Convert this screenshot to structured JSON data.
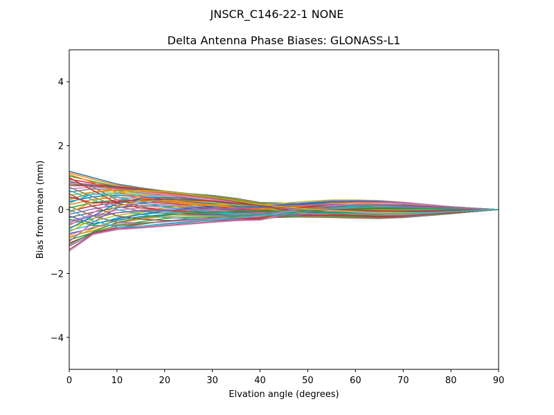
{
  "figure": {
    "suptitle": "JNSCR_C146-22-1 NONE"
  },
  "chart_data": {
    "type": "line",
    "title": "Delta Antenna Phase Biases: GLONASS-L1",
    "xlabel": "Elvation angle (degrees)",
    "ylabel": "Bias from mean (mm)",
    "xlim": [
      0,
      90
    ],
    "ylim": [
      -5,
      5
    ],
    "xticks": [
      0,
      10,
      20,
      30,
      40,
      50,
      60,
      70,
      80,
      90
    ],
    "yticks": [
      -4,
      -2,
      0,
      2,
      4
    ],
    "x": [
      0,
      5,
      10,
      15,
      20,
      25,
      30,
      35,
      40,
      45,
      50,
      55,
      60,
      65,
      70,
      75,
      80,
      85,
      90
    ],
    "grid": false,
    "legend": "none",
    "colors": [
      "#1f77b4",
      "#ff7f0e",
      "#2ca02c",
      "#d62728",
      "#9467bd",
      "#8c564b",
      "#e377c2",
      "#7f7f7f",
      "#bcbd22",
      "#17becf"
    ],
    "series": [
      {
        "values": [
          1.2,
          1.0,
          0.8,
          0.68,
          0.58,
          0.5,
          0.44,
          0.35,
          0.22,
          0.2,
          0.18,
          0.17,
          0.15,
          0.12,
          0.1,
          0.08,
          0.05,
          0.02,
          0.0
        ]
      },
      {
        "values": [
          1.15,
          0.95,
          0.76,
          0.66,
          0.57,
          0.49,
          0.42,
          0.33,
          0.2,
          0.17,
          0.15,
          0.14,
          0.12,
          0.1,
          0.08,
          0.06,
          0.04,
          0.02,
          0.0
        ]
      },
      {
        "values": [
          1.05,
          0.88,
          0.72,
          0.64,
          0.56,
          0.48,
          0.4,
          0.3,
          0.18,
          0.14,
          0.12,
          0.11,
          0.1,
          0.08,
          0.07,
          0.05,
          0.03,
          0.01,
          0.0
        ]
      },
      {
        "values": [
          0.95,
          0.82,
          0.7,
          0.62,
          0.54,
          0.46,
          0.38,
          0.28,
          0.16,
          0.12,
          0.1,
          0.09,
          0.08,
          0.07,
          0.06,
          0.05,
          0.03,
          0.01,
          0.0
        ]
      },
      {
        "values": [
          0.85,
          0.78,
          0.68,
          0.6,
          0.52,
          0.44,
          0.36,
          0.26,
          0.15,
          0.1,
          0.08,
          0.07,
          0.06,
          0.06,
          0.05,
          0.04,
          0.02,
          0.01,
          0.0
        ]
      },
      {
        "values": [
          0.75,
          0.74,
          0.66,
          0.58,
          0.5,
          0.42,
          0.34,
          0.24,
          0.14,
          0.08,
          0.06,
          0.05,
          0.04,
          0.04,
          0.04,
          0.03,
          0.02,
          0.01,
          0.0
        ]
      },
      {
        "values": [
          0.65,
          0.7,
          0.64,
          0.56,
          0.48,
          0.4,
          0.32,
          0.22,
          0.12,
          0.06,
          0.04,
          0.03,
          0.02,
          0.02,
          0.02,
          0.02,
          0.01,
          0.0,
          0.0
        ]
      },
      {
        "values": [
          0.55,
          0.65,
          0.6,
          0.52,
          0.44,
          0.36,
          0.28,
          0.2,
          0.1,
          0.05,
          0.02,
          0.01,
          0.0,
          0.0,
          0.0,
          0.0,
          0.0,
          0.0,
          0.0
        ]
      },
      {
        "values": [
          0.45,
          0.55,
          0.55,
          0.48,
          0.4,
          0.32,
          0.25,
          0.18,
          0.08,
          0.03,
          0.0,
          -0.01,
          -0.02,
          -0.02,
          -0.02,
          -0.01,
          -0.01,
          0.0,
          0.0
        ]
      },
      {
        "values": [
          0.35,
          0.48,
          0.5,
          0.44,
          0.36,
          0.28,
          0.22,
          0.15,
          0.06,
          0.01,
          -0.02,
          -0.03,
          -0.04,
          -0.04,
          -0.03,
          -0.02,
          -0.01,
          0.0,
          0.0
        ]
      },
      {
        "values": [
          0.25,
          0.4,
          0.45,
          0.4,
          0.32,
          0.25,
          0.18,
          0.12,
          0.04,
          -0.01,
          -0.04,
          -0.05,
          -0.06,
          -0.06,
          -0.05,
          -0.04,
          -0.02,
          -0.01,
          0.0
        ]
      },
      {
        "values": [
          0.15,
          0.32,
          0.38,
          0.35,
          0.28,
          0.22,
          0.15,
          0.09,
          0.02,
          -0.03,
          -0.06,
          -0.07,
          -0.08,
          -0.08,
          -0.07,
          -0.05,
          -0.03,
          -0.01,
          0.0
        ]
      },
      {
        "values": [
          0.05,
          0.22,
          0.3,
          0.3,
          0.24,
          0.18,
          0.12,
          0.06,
          0.0,
          -0.05,
          -0.08,
          -0.09,
          -0.1,
          -0.1,
          -0.09,
          -0.06,
          -0.04,
          -0.02,
          0.0
        ]
      },
      {
        "values": [
          -0.05,
          0.12,
          0.22,
          0.24,
          0.2,
          0.14,
          0.09,
          0.03,
          -0.02,
          -0.07,
          -0.1,
          -0.11,
          -0.12,
          -0.12,
          -0.1,
          -0.08,
          -0.05,
          -0.02,
          0.0
        ]
      },
      {
        "values": [
          -0.15,
          0.02,
          0.14,
          0.18,
          0.15,
          0.1,
          0.05,
          0.0,
          -0.05,
          -0.09,
          -0.12,
          -0.13,
          -0.14,
          -0.14,
          -0.12,
          -0.09,
          -0.06,
          -0.03,
          0.0
        ]
      },
      {
        "values": [
          -0.25,
          -0.08,
          0.06,
          0.12,
          0.1,
          0.06,
          0.02,
          -0.03,
          -0.07,
          -0.11,
          -0.14,
          -0.15,
          -0.16,
          -0.16,
          -0.14,
          -0.11,
          -0.07,
          -0.03,
          0.0
        ]
      },
      {
        "values": [
          -0.35,
          -0.18,
          -0.02,
          0.05,
          0.05,
          0.02,
          -0.02,
          -0.06,
          -0.1,
          -0.13,
          -0.16,
          -0.17,
          -0.18,
          -0.18,
          -0.16,
          -0.12,
          -0.08,
          -0.04,
          0.0
        ]
      },
      {
        "values": [
          -0.45,
          -0.28,
          -0.1,
          -0.02,
          0.0,
          -0.02,
          -0.05,
          -0.09,
          -0.12,
          -0.15,
          -0.17,
          -0.19,
          -0.2,
          -0.2,
          -0.18,
          -0.14,
          -0.09,
          -0.04,
          0.0
        ]
      },
      {
        "values": [
          -0.55,
          -0.38,
          -0.18,
          -0.08,
          -0.05,
          -0.06,
          -0.09,
          -0.12,
          -0.15,
          -0.17,
          -0.19,
          -0.21,
          -0.22,
          -0.22,
          -0.19,
          -0.15,
          -0.1,
          -0.05,
          0.0
        ]
      },
      {
        "values": [
          -0.65,
          -0.48,
          -0.26,
          -0.15,
          -0.1,
          -0.1,
          -0.12,
          -0.15,
          -0.18,
          -0.19,
          -0.21,
          -0.23,
          -0.24,
          -0.24,
          -0.21,
          -0.17,
          -0.11,
          -0.05,
          0.0
        ]
      },
      {
        "values": [
          -0.75,
          -0.58,
          -0.34,
          -0.22,
          -0.16,
          -0.14,
          -0.15,
          -0.18,
          -0.2,
          -0.21,
          -0.23,
          -0.24,
          -0.26,
          -0.26,
          -0.23,
          -0.18,
          -0.12,
          -0.06,
          0.0
        ]
      },
      {
        "values": [
          -0.85,
          -0.66,
          -0.42,
          -0.3,
          -0.22,
          -0.19,
          -0.19,
          -0.21,
          -0.23,
          -0.23,
          -0.24,
          -0.25,
          -0.27,
          -0.28,
          -0.25,
          -0.19,
          -0.13,
          -0.06,
          0.0
        ]
      },
      {
        "values": [
          -0.95,
          -0.72,
          -0.5,
          -0.38,
          -0.28,
          -0.24,
          -0.23,
          -0.24,
          -0.26,
          -0.24,
          -0.22,
          -0.22,
          -0.24,
          -0.26,
          -0.24,
          -0.19,
          -0.13,
          -0.06,
          0.0
        ]
      },
      {
        "values": [
          -1.05,
          -0.74,
          -0.56,
          -0.46,
          -0.36,
          -0.3,
          -0.28,
          -0.28,
          -0.29,
          -0.22,
          -0.18,
          -0.18,
          -0.2,
          -0.23,
          -0.22,
          -0.18,
          -0.12,
          -0.06,
          0.0
        ]
      },
      {
        "values": [
          -1.15,
          -0.75,
          -0.6,
          -0.52,
          -0.44,
          -0.38,
          -0.34,
          -0.32,
          -0.32,
          -0.2,
          -0.14,
          -0.14,
          -0.16,
          -0.2,
          -0.2,
          -0.17,
          -0.12,
          -0.06,
          0.0
        ]
      },
      {
        "values": [
          -1.25,
          -0.76,
          -0.62,
          -0.56,
          -0.5,
          -0.44,
          -0.38,
          -0.34,
          -0.33,
          -0.18,
          -0.1,
          -0.1,
          -0.13,
          -0.17,
          -0.18,
          -0.16,
          -0.11,
          -0.05,
          0.0
        ]
      },
      {
        "values": [
          -1.3,
          -0.78,
          -0.63,
          -0.58,
          -0.52,
          -0.46,
          -0.4,
          -0.35,
          -0.33,
          -0.16,
          -0.06,
          -0.06,
          -0.1,
          -0.15,
          -0.17,
          -0.15,
          -0.1,
          -0.05,
          0.0
        ]
      },
      {
        "values": [
          0.9,
          0.7,
          0.3,
          0.1,
          -0.05,
          -0.1,
          -0.12,
          -0.1,
          -0.06,
          0.05,
          0.15,
          0.22,
          0.25,
          0.24,
          0.2,
          0.14,
          0.08,
          0.03,
          0.0
        ]
      },
      {
        "values": [
          -0.9,
          -0.6,
          -0.3,
          -0.1,
          0.05,
          0.12,
          0.15,
          0.16,
          0.14,
          0.2,
          0.26,
          0.3,
          0.3,
          0.28,
          0.23,
          0.16,
          0.09,
          0.04,
          0.0
        ]
      },
      {
        "values": [
          0.6,
          0.3,
          0.0,
          -0.15,
          -0.25,
          -0.28,
          -0.28,
          -0.26,
          -0.22,
          -0.12,
          -0.04,
          0.04,
          0.1,
          0.14,
          0.14,
          0.11,
          0.07,
          0.03,
          0.0
        ]
      },
      {
        "values": [
          -0.6,
          -0.2,
          0.2,
          0.35,
          0.38,
          0.34,
          0.26,
          0.16,
          0.06,
          0.1,
          0.18,
          0.24,
          0.26,
          0.25,
          0.21,
          0.15,
          0.09,
          0.04,
          0.0
        ]
      },
      {
        "values": [
          0.3,
          0.55,
          0.62,
          0.58,
          0.5,
          0.42,
          0.34,
          0.25,
          0.14,
          0.12,
          0.14,
          0.16,
          0.17,
          0.16,
          0.13,
          0.09,
          0.05,
          0.02,
          0.0
        ]
      },
      {
        "values": [
          -0.3,
          -0.5,
          -0.5,
          -0.44,
          -0.38,
          -0.32,
          -0.26,
          -0.2,
          -0.16,
          -0.1,
          -0.08,
          -0.08,
          -0.1,
          -0.12,
          -0.12,
          -0.1,
          -0.07,
          -0.03,
          0.0
        ]
      },
      {
        "values": [
          1.0,
          0.6,
          0.2,
          0.05,
          -0.02,
          -0.06,
          -0.08,
          -0.08,
          -0.06,
          0.02,
          0.08,
          0.12,
          0.14,
          0.14,
          0.12,
          0.09,
          0.05,
          0.02,
          0.0
        ]
      },
      {
        "values": [
          -1.0,
          -0.4,
          0.05,
          0.2,
          0.28,
          0.3,
          0.28,
          0.22,
          0.12,
          0.16,
          0.22,
          0.27,
          0.28,
          0.27,
          0.22,
          0.16,
          0.09,
          0.04,
          0.0
        ]
      },
      {
        "values": [
          0.5,
          0.1,
          -0.2,
          -0.3,
          -0.34,
          -0.34,
          -0.32,
          -0.28,
          -0.24,
          -0.15,
          -0.08,
          -0.02,
          0.03,
          0.06,
          0.07,
          0.06,
          0.04,
          0.02,
          0.0
        ]
      },
      {
        "values": [
          -0.5,
          -0.1,
          0.3,
          0.42,
          0.44,
          0.4,
          0.32,
          0.22,
          0.1,
          0.04,
          0.0,
          -0.04,
          -0.08,
          -0.12,
          -0.13,
          -0.11,
          -0.07,
          -0.03,
          0.0
        ]
      },
      {
        "values": [
          0.7,
          0.4,
          0.1,
          -0.05,
          -0.12,
          -0.16,
          -0.18,
          -0.18,
          -0.16,
          -0.2,
          -0.22,
          -0.24,
          -0.26,
          -0.27,
          -0.25,
          -0.19,
          -0.12,
          -0.05,
          0.0
        ]
      },
      {
        "values": [
          -0.7,
          -0.3,
          0.1,
          0.26,
          0.3,
          0.28,
          0.22,
          0.14,
          0.04,
          -0.04,
          -0.1,
          -0.14,
          -0.17,
          -0.19,
          -0.18,
          -0.15,
          -0.1,
          -0.05,
          0.0
        ]
      },
      {
        "values": [
          0.2,
          0.5,
          0.4,
          0.22,
          0.08,
          -0.02,
          -0.08,
          -0.12,
          -0.14,
          -0.08,
          -0.03,
          0.02,
          0.06,
          0.08,
          0.08,
          0.06,
          0.04,
          0.02,
          0.0
        ]
      },
      {
        "values": [
          -0.2,
          -0.45,
          -0.3,
          -0.15,
          -0.04,
          0.04,
          0.08,
          0.09,
          0.08,
          0.14,
          0.2,
          0.24,
          0.24,
          0.22,
          0.18,
          0.13,
          0.08,
          0.03,
          0.0
        ]
      },
      {
        "values": [
          1.1,
          0.85,
          0.55,
          0.38,
          0.26,
          0.18,
          0.12,
          0.06,
          0.0,
          0.06,
          0.12,
          0.18,
          0.22,
          0.22,
          0.19,
          0.14,
          0.08,
          0.03,
          0.0
        ]
      },
      {
        "values": [
          -1.1,
          -0.7,
          -0.4,
          -0.26,
          -0.18,
          -0.12,
          -0.08,
          -0.06,
          -0.05,
          -0.04,
          -0.03,
          -0.01,
          0.01,
          0.02,
          0.03,
          0.03,
          0.02,
          0.01,
          0.0
        ]
      },
      {
        "values": [
          0.4,
          0.2,
          0.25,
          0.3,
          0.32,
          0.3,
          0.26,
          0.2,
          0.12,
          0.06,
          0.02,
          0.0,
          -0.02,
          -0.04,
          -0.05,
          -0.05,
          -0.03,
          -0.01,
          0.0
        ]
      },
      {
        "values": [
          -0.4,
          -0.2,
          -0.1,
          -0.05,
          -0.02,
          0.0,
          0.02,
          0.04,
          0.05,
          0.1,
          0.14,
          0.16,
          0.15,
          0.13,
          0.1,
          0.07,
          0.04,
          0.02,
          0.0
        ]
      },
      {
        "values": [
          0.8,
          0.75,
          0.72,
          0.65,
          0.56,
          0.46,
          0.36,
          0.25,
          0.12,
          0.0,
          -0.08,
          -0.14,
          -0.18,
          -0.2,
          -0.19,
          -0.15,
          -0.1,
          -0.05,
          0.0
        ]
      },
      {
        "values": [
          -0.8,
          -0.55,
          -0.46,
          -0.42,
          -0.38,
          -0.34,
          -0.3,
          -0.26,
          -0.22,
          -0.08,
          0.04,
          0.12,
          0.18,
          0.2,
          0.19,
          0.15,
          0.09,
          0.04,
          0.0
        ]
      },
      {
        "values": [
          0.1,
          -0.2,
          -0.4,
          -0.42,
          -0.38,
          -0.32,
          -0.26,
          -0.2,
          -0.14,
          -0.05,
          0.04,
          0.1,
          0.14,
          0.16,
          0.15,
          0.12,
          0.08,
          0.04,
          0.0
        ]
      },
      {
        "values": [
          -0.1,
          0.25,
          0.55,
          0.6,
          0.56,
          0.48,
          0.38,
          0.28,
          0.16,
          0.08,
          0.02,
          -0.02,
          -0.06,
          -0.09,
          -0.1,
          -0.09,
          -0.06,
          -0.03,
          0.0
        ]
      },
      {
        "values": [
          0.0,
          -0.35,
          -0.55,
          -0.52,
          -0.46,
          -0.4,
          -0.33,
          -0.26,
          -0.18,
          -0.14,
          -0.12,
          -0.12,
          -0.13,
          -0.14,
          -0.13,
          -0.1,
          -0.06,
          -0.03,
          0.0
        ]
      }
    ]
  }
}
